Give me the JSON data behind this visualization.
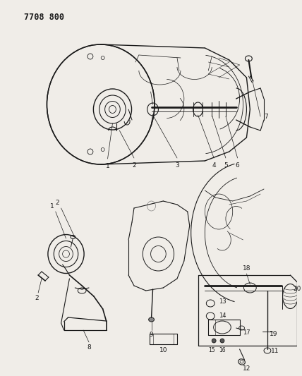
{
  "title_text": "7708 800",
  "bg_color": "#f0ede8",
  "fig_width": 4.28,
  "fig_height": 5.33,
  "dpi": 100,
  "line_color": "#1a1a1a",
  "label_fontsize": 6.5,
  "title_fontsize": 8.5
}
